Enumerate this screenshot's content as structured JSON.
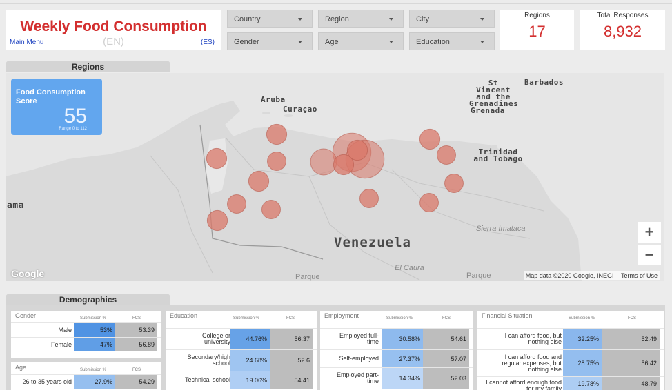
{
  "header": {
    "title": "Weekly Food Consumption",
    "lang_current": "(EN)",
    "main_menu": "Main Menu",
    "lang_es": "(ES)"
  },
  "filters": [
    {
      "label": "Country"
    },
    {
      "label": "Region"
    },
    {
      "label": "City"
    },
    {
      "label": "Gender"
    },
    {
      "label": "Age"
    },
    {
      "label": "Education"
    }
  ],
  "kpis": {
    "regions": {
      "label": "Regions",
      "value": "17"
    },
    "responses": {
      "label": "Total Responses",
      "value": "8,932"
    }
  },
  "map_section": {
    "tab": "Regions",
    "score_card": {
      "label": "Food Consumption Score",
      "value": "55",
      "range": "Range 0 to 112"
    },
    "places": {
      "aruba": "Aruba",
      "curacao": "Curaçao",
      "st_vincent": "St Vincent and the Grenadines",
      "barbados": "Barbados",
      "grenada": "Grenada",
      "trinidad": "Trinidad and Tobago",
      "panama_partial": "ama",
      "venezuela": "Venezuela",
      "sierra": "Sierra Imataca",
      "el_caura": "El Caura",
      "parque1": "Parque",
      "parque2": "Parque"
    },
    "zoom_in": "+",
    "zoom_out": "−",
    "attribution": "Map data ©2020 Google, INEGI",
    "terms": "Terms of Use",
    "logo": "Google",
    "bubble_color": "#d9786a",
    "bubbles": [
      {
        "value": 2.5
      },
      {
        "value": 2.5
      },
      {
        "value": 0.5
      },
      {
        "value": 0.5
      },
      {
        "value": 0.5
      },
      {
        "value": 0.4
      },
      {
        "value": 0.4
      },
      {
        "value": 0.5
      },
      {
        "value": 1
      },
      {
        "value": 0.5
      },
      {
        "value": 0.4
      },
      {
        "value": 0.5
      },
      {
        "value": 0.4
      },
      {
        "value": 0.4
      },
      {
        "value": 0.4
      },
      {
        "value": 0.5
      },
      {
        "value": 0.4
      }
    ]
  },
  "demographics": {
    "tab": "Demographics",
    "col_sub": "Submission %",
    "col_fcs": "FCS",
    "panels": [
      {
        "title": "Gender",
        "rows": [
          {
            "label": "Male",
            "sub": "53%",
            "sub_value": 53,
            "fcs": "53.39"
          },
          {
            "label": "Female",
            "sub": "47%",
            "sub_value": 47,
            "fcs": "56.89"
          }
        ]
      },
      {
        "title": "Age",
        "rows": [
          {
            "label": "26 to 35 years old",
            "sub": "27.9%",
            "sub_value": 27.9,
            "fcs": "54.29"
          }
        ]
      },
      {
        "title": "Education",
        "rows": [
          {
            "label": "College or university",
            "sub": "44.76%",
            "sub_value": 44.76,
            "fcs": "56.37"
          },
          {
            "label": "Secondary/high school",
            "sub": "24.68%",
            "sub_value": 24.68,
            "fcs": "52.6"
          },
          {
            "label": "Technical school",
            "sub": "19.06%",
            "sub_value": 19.06,
            "fcs": "54.41"
          }
        ]
      },
      {
        "title": "Employment",
        "rows": [
          {
            "label": "Employed full-time",
            "sub": "30.58%",
            "sub_value": 30.58,
            "fcs": "54.61"
          },
          {
            "label": "Self-employed",
            "sub": "27.37%",
            "sub_value": 27.37,
            "fcs": "57.07"
          },
          {
            "label": "Employed part-time",
            "sub": "14.34%",
            "sub_value": 14.34,
            "fcs": "52.03"
          }
        ]
      },
      {
        "title": "Financial Situation",
        "rows": [
          {
            "label": "I can afford food, but nothing else",
            "sub": "32.25%",
            "sub_value": 32.25,
            "fcs": "52.49"
          },
          {
            "label": "I can afford food and regular expenses, but nothing else",
            "sub": "28.75%",
            "sub_value": 28.75,
            "fcs": "56.42"
          },
          {
            "label": "I cannot afford enough food for my family",
            "sub": "19.78%",
            "sub_value": 19.78,
            "fcs": "48.79"
          }
        ]
      }
    ]
  }
}
